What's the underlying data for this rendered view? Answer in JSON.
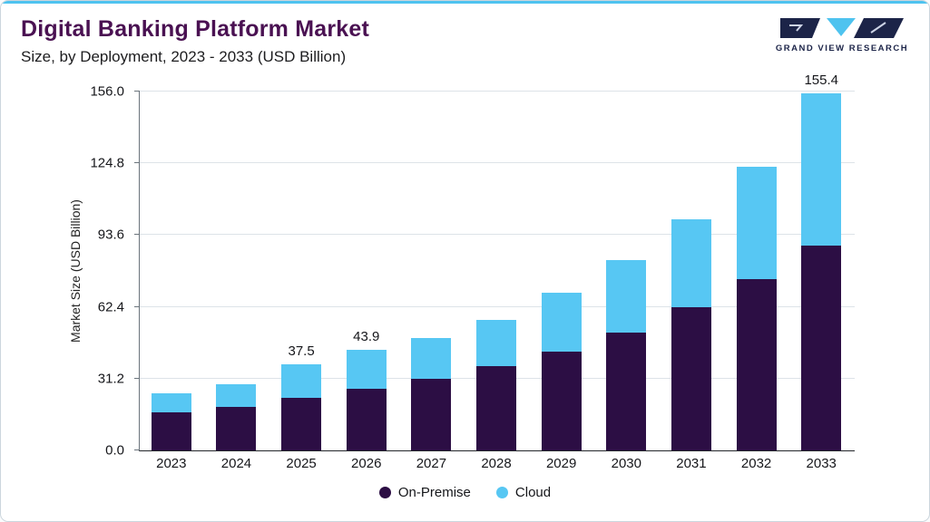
{
  "header": {
    "title": "Digital Banking Platform Market",
    "subtitle": "Size, by Deployment, 2023 - 2033 (USD Billion)",
    "logo_text": "GRAND VIEW RESEARCH"
  },
  "colors": {
    "accent": "#4ec3ef",
    "navy": "#1c2448",
    "title": "#4a1152",
    "on_premise": "#2c0e44",
    "cloud": "#57c7f3"
  },
  "chart_data": {
    "type": "bar",
    "stacked": true,
    "title": "Digital Banking Platform Market",
    "subtitle": "Size, by Deployment, 2023 - 2033 (USD Billion)",
    "ylabel": "Market Size (USD Billion)",
    "xlabel": "",
    "ylim": [
      0,
      156
    ],
    "ytick_labels": [
      "0.0",
      "31.2",
      "62.4",
      "93.6",
      "124.8",
      "156.0"
    ],
    "grid": true,
    "legend_position": "bottom",
    "categories": [
      "2023",
      "2024",
      "2025",
      "2026",
      "2027",
      "2028",
      "2029",
      "2030",
      "2031",
      "2032",
      "2033"
    ],
    "series": [
      {
        "name": "On-Premise",
        "color": "#2c0e44",
        "values": [
          16.5,
          19.0,
          23.0,
          26.8,
          31.2,
          36.5,
          43.0,
          51.2,
          62.4,
          74.5,
          89.0
        ]
      },
      {
        "name": "Cloud",
        "color": "#57c7f3",
        "values": [
          8.3,
          9.8,
          14.5,
          17.1,
          17.6,
          20.4,
          25.4,
          31.4,
          38.1,
          48.9,
          66.4
        ]
      }
    ],
    "totals": [
      24.8,
      28.8,
      37.5,
      43.9,
      48.8,
      56.9,
      68.4,
      82.6,
      100.5,
      123.4,
      155.4
    ],
    "bar_total_labels": [
      "",
      "",
      "37.5",
      "43.9",
      "",
      "",
      "",
      "",
      "",
      "",
      "155.4"
    ]
  }
}
